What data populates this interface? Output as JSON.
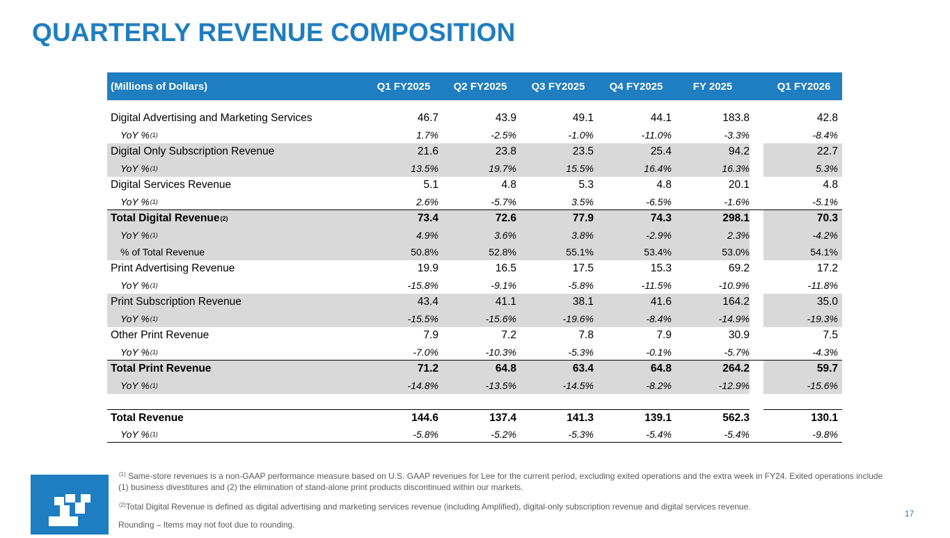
{
  "title": "QUARTERLY REVENUE COMPOSITION",
  "table": {
    "header": {
      "label": "(Millions of Dollars)",
      "cols": [
        "Q1 FY2025",
        "Q2 FY2025",
        "Q3 FY2025",
        "Q4 FY2025",
        "FY 2025",
        "Q1 FY2026"
      ]
    },
    "rows": [
      {
        "label": "Digital Advertising and Marketing Services",
        "values": [
          "46.7",
          "43.9",
          "49.1",
          "44.1",
          "183.8",
          "42.8"
        ]
      },
      {
        "label": "YoY %",
        "note": "(1)",
        "values": [
          "1.7%",
          "-2.5%",
          "-1.0%",
          "-11.0%",
          "-3.3%",
          "-8.4%"
        ]
      },
      {
        "label": "Digital Only Subscription Revenue",
        "values": [
          "21.6",
          "23.8",
          "23.5",
          "25.4",
          "94.2",
          "22.7"
        ]
      },
      {
        "label": "YoY %",
        "note": "(1)",
        "values": [
          "13.5%",
          "19.7%",
          "15.5%",
          "16.4%",
          "16.3%",
          "5.3%"
        ]
      },
      {
        "label": "Digital Services Revenue",
        "values": [
          "5.1",
          "4.8",
          "5.3",
          "4.8",
          "20.1",
          "4.8"
        ]
      },
      {
        "label": "YoY %",
        "note": "(1)",
        "values": [
          "2.6%",
          "-5.7%",
          "3.5%",
          "-6.5%",
          "-1.6%",
          "-5.1%"
        ]
      },
      {
        "label": "Total Digital Revenue",
        "note": "(2)",
        "values": [
          "73.4",
          "72.6",
          "77.9",
          "74.3",
          "298.1",
          "70.3"
        ]
      },
      {
        "label": "YoY %",
        "note": "(1)",
        "values": [
          "4.9%",
          "3.6%",
          "3.8%",
          "-2.9%",
          "2.3%",
          "-4.2%"
        ]
      },
      {
        "label": "% of Total Revenue",
        "values": [
          "50.8%",
          "52.8%",
          "55.1%",
          "53.4%",
          "53.0%",
          "54.1%"
        ]
      },
      {
        "label": "Print Advertising Revenue",
        "values": [
          "19.9",
          "16.5",
          "17.5",
          "15.3",
          "69.2",
          "17.2"
        ]
      },
      {
        "label": "YoY %",
        "note": "(1)",
        "values": [
          "-15.8%",
          "-9.1%",
          "-5.8%",
          "-11.5%",
          "-10.9%",
          "-11.8%"
        ]
      },
      {
        "label": "Print Subscription Revenue",
        "values": [
          "43.4",
          "41.1",
          "38.1",
          "41.6",
          "164.2",
          "35.0"
        ]
      },
      {
        "label": "YoY %",
        "note": "(1)",
        "values": [
          "-15.5%",
          "-15.6%",
          "-19.6%",
          "-8.4%",
          "-14.9%",
          "-19.3%"
        ]
      },
      {
        "label": "Other Print Revenue",
        "values": [
          "7.9",
          "7.2",
          "7.8",
          "7.9",
          "30.9",
          "7.5"
        ]
      },
      {
        "label": "YoY %",
        "note": "(1)",
        "values": [
          "-7.0%",
          "-10.3%",
          "-5.3%",
          "-0.1%",
          "-5.7%",
          "-4.3%"
        ]
      },
      {
        "label": "Total Print Revenue",
        "values": [
          "71.2",
          "64.8",
          "63.4",
          "64.8",
          "264.2",
          "59.7"
        ]
      },
      {
        "label": "YoY %",
        "note": "(1)",
        "values": [
          "-14.8%",
          "-13.5%",
          "-14.5%",
          "-8.2%",
          "-12.9%",
          "-15.6%"
        ]
      },
      {
        "label": "Total Revenue",
        "values": [
          "144.6",
          "137.4",
          "141.3",
          "139.1",
          "562.3",
          "130.1"
        ]
      },
      {
        "label": "YoY %",
        "note": "(1)",
        "values": [
          "-5.8%",
          "-5.2%",
          "-5.3%",
          "-5.4%",
          "-5.4%",
          "-9.8%"
        ]
      }
    ]
  },
  "footnotes": {
    "n1_mark": "(1)",
    "n1_text": " Same-store revenues is a non-GAAP performance measure based on U.S. GAAP revenues for Lee for the current period, excluding exited operations and the extra week in FY24. Exited operations include (1) business divestitures and (2) the elimination of stand-alone print products discontinued within our markets.",
    "n2_mark": "(2)",
    "n2_text": "Total Digital Revenue is defined as digital advertising and marketing services revenue (including Amplified), digital-only subscription revenue and digital services revenue.",
    "rounding": "Rounding – Items may not foot due to rounding."
  },
  "page_number": "17",
  "colors": {
    "brand_blue": "#1f7dc1",
    "shade": "#d9d9d9"
  },
  "logo": {
    "icon": "lee-enterprises-logo-icon"
  }
}
